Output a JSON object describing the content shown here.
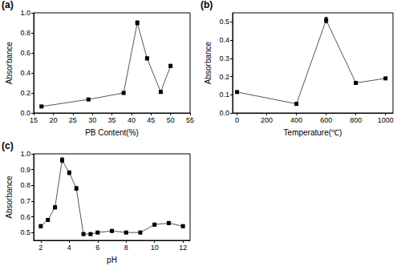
{
  "chart_data": [
    {
      "type": "line",
      "annotations": [
        "(a)"
      ],
      "xlabel": "PB Content(%)",
      "ylabel": "Absorbance",
      "x": [
        17,
        29,
        38,
        41.5,
        44,
        47.5,
        50
      ],
      "values": [
        0.065,
        0.135,
        0.2,
        0.9,
        0.545,
        0.21,
        0.47
      ],
      "errors": [
        0.008,
        0.008,
        0.01,
        0.02,
        0.015,
        0.012,
        0.015
      ],
      "xlim": [
        15,
        55
      ],
      "xticks": [
        15,
        20,
        25,
        30,
        35,
        40,
        45,
        50,
        55
      ],
      "ylim": [
        0,
        1
      ],
      "yticks": [
        {
          "value": 0,
          "label": "0.0"
        },
        0.2,
        0.4,
        0.6,
        0.8,
        {
          "value": 1,
          "label": "1.0"
        }
      ],
      "color": "#000000",
      "marker": "square",
      "line_style": "solid",
      "grid": false
    },
    {
      "type": "line",
      "annotations": [
        "(b)"
      ],
      "xlabel": "Temperature(℃)",
      "ylabel": "Absorbance",
      "x": [
        0,
        400,
        600,
        800,
        1000
      ],
      "values": [
        0.115,
        0.05,
        0.51,
        0.165,
        0.19
      ],
      "errors": [
        0.005,
        0.004,
        0.015,
        0.005,
        0.005
      ],
      "xlim": [
        -30,
        1050
      ],
      "xticks": [
        0,
        200,
        400,
        600,
        800,
        1000
      ],
      "ylim": [
        0,
        0.55
      ],
      "yticks": [
        {
          "value": 0,
          "label": "0.0"
        },
        0.1,
        0.2,
        0.3,
        0.4,
        0.5
      ],
      "color": "#000000",
      "marker": "square",
      "line_style": "solid",
      "grid": false
    },
    {
      "type": "line",
      "annotations": [
        "(c)"
      ],
      "xlabel": "pH",
      "ylabel": "Absorbance",
      "x": [
        2,
        2.5,
        3,
        3.5,
        4,
        4.5,
        5,
        5.5,
        6,
        7,
        8,
        9,
        10,
        11,
        12
      ],
      "values": [
        0.54,
        0.58,
        0.66,
        0.96,
        0.88,
        0.78,
        0.49,
        0.49,
        0.5,
        0.51,
        0.5,
        0.5,
        0.55,
        0.56,
        0.54
      ],
      "errors": [
        0.01,
        0.01,
        0.01,
        0.015,
        0.012,
        0.012,
        0.008,
        0.008,
        0.008,
        0.008,
        0.008,
        0.008,
        0.01,
        0.01,
        0.01
      ],
      "xlim": [
        1.5,
        12.5
      ],
      "xticks": [
        2,
        4,
        6,
        8,
        10,
        12
      ],
      "ylim": [
        0.45,
        1
      ],
      "yticks": [
        0.5,
        0.6,
        0.7,
        0.8,
        0.9,
        {
          "value": 1,
          "label": "1.0"
        }
      ],
      "color": "#000000",
      "marker": "square",
      "line_style": "solid",
      "grid": false
    }
  ]
}
